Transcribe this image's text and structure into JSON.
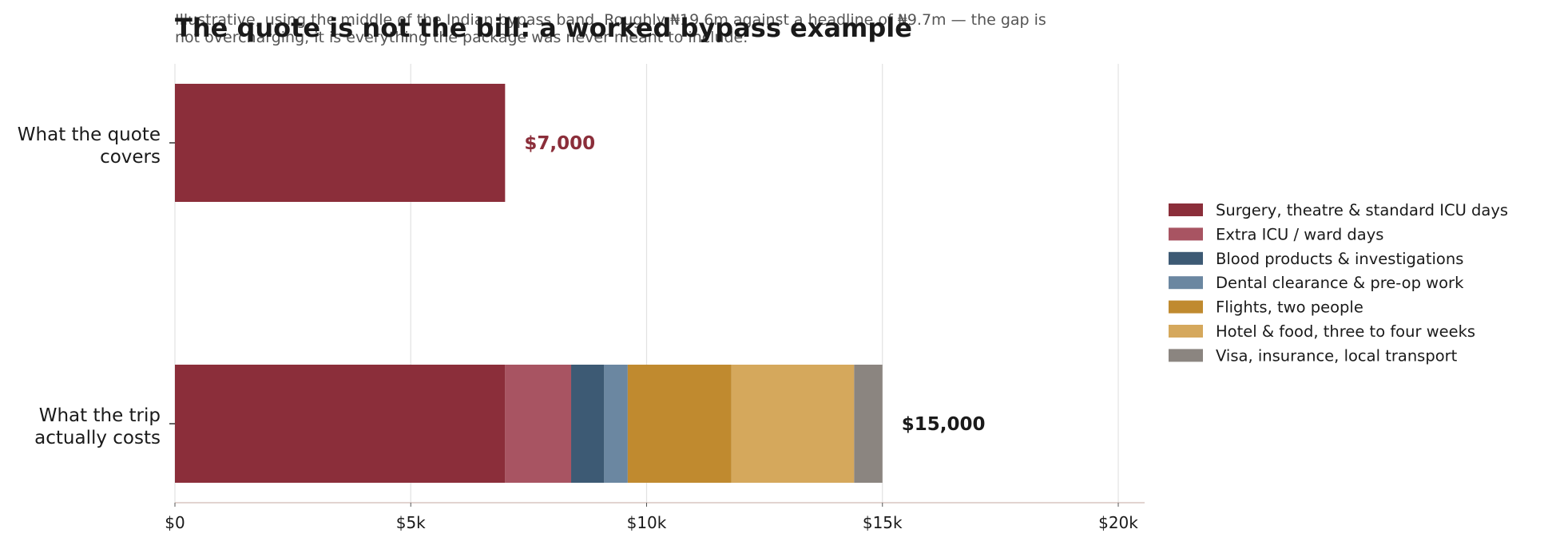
{
  "chart_data": {
    "type": "bar",
    "orientation": "horizontal",
    "stacked": true,
    "title": "The quote is not the bill: a worked bypass example",
    "subtitle_lines": [
      "Illustrative, using the middle of the Indian bypass band. Roughly ₦19.6m against a headline of ₦9.7m — the gap is",
      "not overcharging, it is everything the package was never meant to include."
    ],
    "categories": [
      [
        "What the quote",
        "covers"
      ],
      [
        "What the trip",
        "actually costs"
      ]
    ],
    "series": [
      {
        "name": "Surgery, theatre & standard ICU days",
        "color": "#8b2e3a",
        "values": [
          7000,
          7000
        ]
      },
      {
        "name": "Extra ICU / ward days",
        "color": "#a85462",
        "values": [
          0,
          1400
        ]
      },
      {
        "name": "Blood products & investigations",
        "color": "#3d5a74",
        "values": [
          0,
          700
        ]
      },
      {
        "name": "Dental clearance & pre-op work",
        "color": "#6b87a1",
        "values": [
          0,
          500
        ]
      },
      {
        "name": "Flights, two people",
        "color": "#c08a2f",
        "values": [
          0,
          2200
        ]
      },
      {
        "name": "Hotel & food, three to four weeks",
        "color": "#d5a85c",
        "values": [
          0,
          2600
        ]
      },
      {
        "name": "Visa, insurance, local transport",
        "color": "#8b8580",
        "values": [
          0,
          600
        ]
      }
    ],
    "totals": [
      {
        "label": "$7,000",
        "value": 7000,
        "color": "#8b2e3a"
      },
      {
        "label": "$15,000",
        "value": 15000,
        "color": "#1a1a1a"
      }
    ],
    "xlim": [
      0,
      20500
    ],
    "x_ticks": [
      {
        "value": 0,
        "label": "$0"
      },
      {
        "value": 5000,
        "label": "$5k"
      },
      {
        "value": 10000,
        "label": "$10k"
      },
      {
        "value": 15000,
        "label": "$15k"
      },
      {
        "value": 20000,
        "label": "$20k"
      }
    ],
    "grid": "vertical",
    "legend_placement": "right"
  }
}
